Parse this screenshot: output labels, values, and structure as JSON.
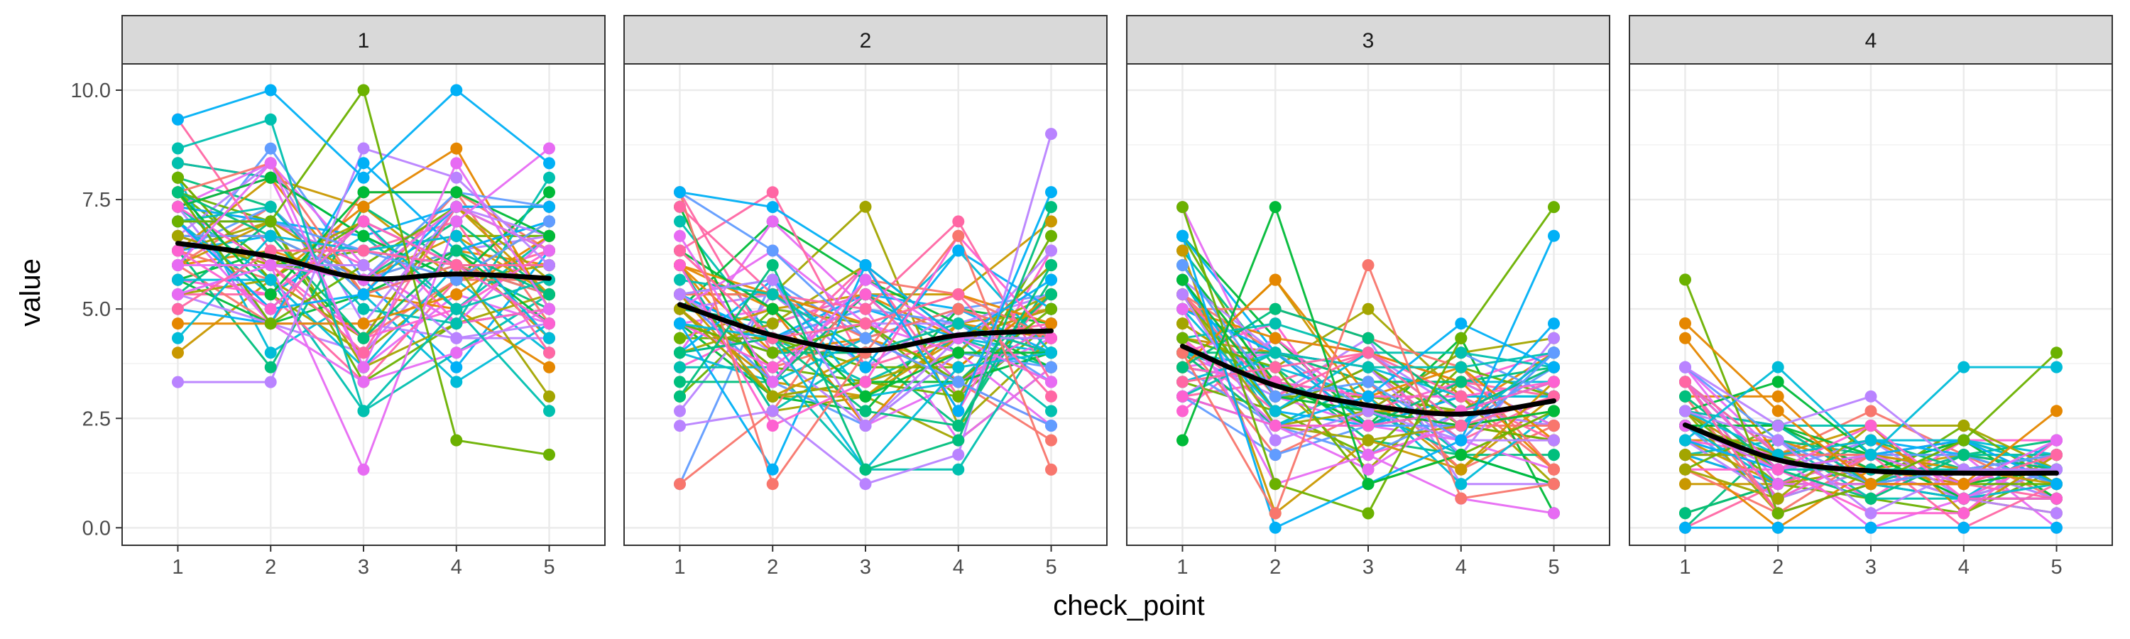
{
  "chart_data": {
    "type": "line",
    "facet_by": "group",
    "xlabel": "check_point",
    "ylabel": "value",
    "x": [
      1,
      2,
      3,
      4,
      5
    ],
    "x_tick_labels": [
      "1",
      "2",
      "3",
      "4",
      "5"
    ],
    "ylim": [
      -0.4,
      10.6
    ],
    "y_ticks": [
      0.0,
      2.5,
      5.0,
      7.5,
      10.0
    ],
    "y_tick_labels": [
      "0.0",
      "2.5",
      "5.0",
      "7.5",
      "10.0"
    ],
    "grid": true,
    "series_count_per_panel": 60,
    "series_colors": [
      "#F8766D",
      "#E58700",
      "#C99800",
      "#A3A500",
      "#6BB100",
      "#00BA38",
      "#00BF7D",
      "#00C0AF",
      "#00BCD8",
      "#00B0F6",
      "#619CFF",
      "#B983FF",
      "#E76BF3",
      "#FD61D1",
      "#FF67A4"
    ],
    "smooth_color": "#000000",
    "panels": [
      {
        "strip": "1",
        "mean": [
          6.5,
          6.2,
          5.7,
          5.8,
          5.7
        ],
        "spread": [
          1.2,
          1.2,
          1.2,
          1.3,
          1.2
        ],
        "clamp": [
          1.3,
          10.0
        ],
        "smooth": [
          6.5,
          6.2,
          5.7,
          5.8,
          5.7
        ],
        "outliers": [
          {
            "values": [
              3.33,
              3.33,
              8.67,
              8.0,
              6.0
            ],
            "color": "#B983FF"
          },
          {
            "values": [
              6.0,
              6.0,
              1.33,
              7.0,
              8.67
            ],
            "color": "#E76BF3"
          },
          {
            "values": [
              7.0,
              7.0,
              10.0,
              2.0,
              1.67
            ],
            "color": "#6BB100"
          },
          {
            "values": [
              9.33,
              10.0,
              8.0,
              10.0,
              8.33
            ],
            "color": "#00B0F6"
          },
          {
            "values": [
              8.67,
              9.33,
              2.67,
              5.0,
              2.67
            ],
            "color": "#00C0AF"
          },
          {
            "values": [
              6.0,
              8.33,
              3.67,
              8.33,
              5.0
            ],
            "color": "#E76BF3"
          }
        ]
      },
      {
        "strip": "2",
        "mean": [
          5.1,
          4.4,
          4.05,
          4.4,
          4.5
        ],
        "spread": [
          1.2,
          1.2,
          1.2,
          1.1,
          1.1
        ],
        "clamp": [
          1.0,
          9.0
        ],
        "smooth": [
          5.1,
          4.4,
          4.05,
          4.4,
          4.5
        ],
        "outliers": [
          {
            "values": [
              2.33,
              2.67,
              1.0,
              1.67,
              9.0
            ],
            "color": "#B983FF"
          },
          {
            "values": [
              7.67,
              1.0,
              4.0,
              6.67,
              1.33
            ],
            "color": "#F8766D"
          },
          {
            "values": [
              7.67,
              7.33,
              6.0,
              2.67,
              7.67
            ],
            "color": "#00B0F6"
          },
          {
            "values": [
              3.0,
              6.0,
              1.33,
              2.0,
              7.33
            ],
            "color": "#00BF7D"
          }
        ]
      },
      {
        "strip": "3",
        "mean": [
          4.1,
          3.3,
          2.8,
          2.6,
          2.9
        ],
        "spread": [
          1.3,
          1.1,
          1.0,
          0.8,
          1.0
        ],
        "clamp": [
          0.0,
          7.33
        ],
        "smooth": [
          4.15,
          3.25,
          2.8,
          2.6,
          2.9
        ],
        "outliers": [
          {
            "values": [
              7.33,
              1.0,
              0.33,
              4.33,
              7.33
            ],
            "color": "#6BB100"
          },
          {
            "values": [
              6.67,
              0.0,
              1.0,
              2.0,
              6.67
            ],
            "color": "#00B0F6"
          },
          {
            "values": [
              2.0,
              7.33,
              1.0,
              1.67,
              1.0
            ],
            "color": "#00BA38"
          },
          {
            "values": [
              4.0,
              0.33,
              6.0,
              0.67,
              1.0
            ],
            "color": "#F8766D"
          }
        ]
      },
      {
        "strip": "4",
        "mean": [
          2.3,
          1.5,
          1.3,
          1.25,
          1.25
        ],
        "spread": [
          0.9,
          0.6,
          0.5,
          0.5,
          0.5
        ],
        "clamp": [
          0.0,
          5.67
        ],
        "smooth": [
          2.35,
          1.55,
          1.3,
          1.25,
          1.25
        ],
        "outliers": [
          {
            "values": [
              5.67,
              0.33,
              1.0,
              2.0,
              4.0
            ],
            "color": "#6BB100"
          },
          {
            "values": [
              0.0,
              0.0,
              0.0,
              0.0,
              0.0
            ],
            "color": "#00B0F6"
          },
          {
            "values": [
              2.0,
              3.67,
              1.67,
              3.67,
              3.67
            ],
            "color": "#00BCD8"
          },
          {
            "values": [
              4.67,
              2.67,
              1.0,
              1.0,
              2.67
            ],
            "color": "#E58700"
          },
          {
            "values": [
              3.67,
              2.33,
              3.0,
              1.33,
              1.33
            ],
            "color": "#B983FF"
          }
        ]
      }
    ]
  }
}
